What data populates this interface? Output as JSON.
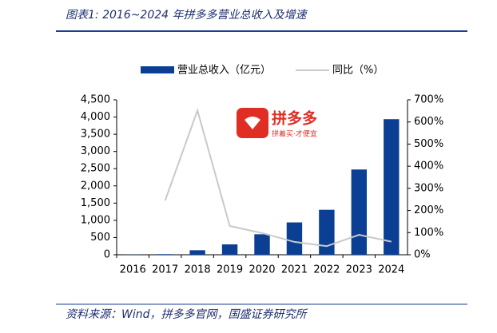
{
  "header": {
    "title": "图表1: 2016~2024 年拼多多营业总收入及增速"
  },
  "logo": {
    "name": "拼多多",
    "slogan": "拼着买·才便宜"
  },
  "chart_data": {
    "type": "bar",
    "categories": [
      "2016",
      "2017",
      "2018",
      "2019",
      "2020",
      "2021",
      "2022",
      "2023",
      "2024"
    ],
    "series": [
      {
        "name": "营业总收入（亿元）",
        "type": "bar",
        "color": "#0b3f94",
        "values": [
          5,
          17,
          131,
          301,
          595,
          939,
          1306,
          2476,
          3938
        ]
      },
      {
        "name": "同比（%）",
        "type": "line",
        "axis": "y2",
        "color": "#c9c9c9",
        "values": [
          null,
          245,
          652,
          130,
          98,
          58,
          39,
          90,
          59
        ]
      }
    ],
    "ylim": [
      0,
      4500
    ],
    "yticks": [
      0,
      500,
      {
        "value": 1000,
        "label": "1,000"
      },
      {
        "value": 1500,
        "label": "1,500"
      },
      {
        "value": 2000,
        "label": "2,000"
      },
      {
        "value": 2500,
        "label": "2,500"
      },
      {
        "value": 3000,
        "label": "3,000"
      },
      {
        "value": 3500,
        "label": "3,500"
      },
      {
        "value": 4000,
        "label": "4,000"
      },
      {
        "value": 4500,
        "label": "4,500"
      }
    ],
    "y2lim": [
      0,
      700
    ],
    "y2ticks": [
      {
        "value": 0,
        "label": "0%"
      },
      {
        "value": 100,
        "label": "100%"
      },
      {
        "value": 200,
        "label": "200%"
      },
      {
        "value": 300,
        "label": "300%"
      },
      {
        "value": 400,
        "label": "400%"
      },
      {
        "value": 500,
        "label": "500%"
      },
      {
        "value": 600,
        "label": "600%"
      },
      {
        "value": 700,
        "label": "700%"
      }
    ]
  },
  "footer": {
    "source": "资料来源：Wind，拼多多官网，国盛证券研究所"
  }
}
